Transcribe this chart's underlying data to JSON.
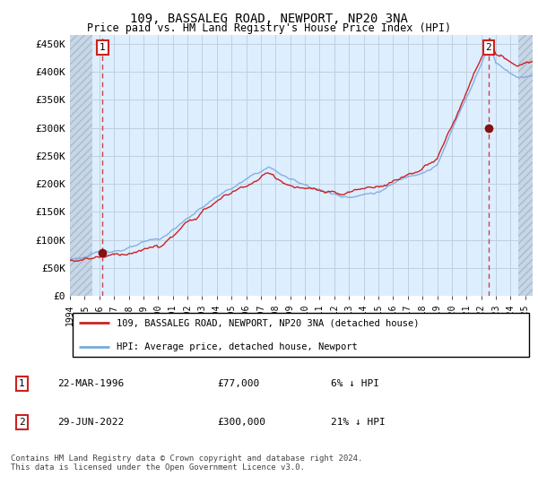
{
  "title": "109, BASSALEG ROAD, NEWPORT, NP20 3NA",
  "subtitle": "Price paid vs. HM Land Registry's House Price Index (HPI)",
  "ylabel_ticks": [
    "£0",
    "£50K",
    "£100K",
    "£150K",
    "£200K",
    "£250K",
    "£300K",
    "£350K",
    "£400K",
    "£450K"
  ],
  "ytick_values": [
    0,
    50000,
    100000,
    150000,
    200000,
    250000,
    300000,
    350000,
    400000,
    450000
  ],
  "xlim_start": 1994.0,
  "xlim_end": 2025.5,
  "ylim_min": 0,
  "ylim_max": 465000,
  "hatch_end_year": 1995.5,
  "hatch_start_year": 2024.5,
  "transaction1_date": 1996.22,
  "transaction1_price": 77000,
  "transaction1_label": "1",
  "transaction2_date": 2022.49,
  "transaction2_price": 300000,
  "transaction2_label": "2",
  "legend_line1": "109, BASSALEG ROAD, NEWPORT, NP20 3NA (detached house)",
  "legend_line2": "HPI: Average price, detached house, Newport",
  "note1_label": "1",
  "note1_date": "22-MAR-1996",
  "note1_price": "£77,000",
  "note1_hpi": "6% ↓ HPI",
  "note2_label": "2",
  "note2_date": "29-JUN-2022",
  "note2_price": "£300,000",
  "note2_hpi": "21% ↓ HPI",
  "footer": "Contains HM Land Registry data © Crown copyright and database right 2024.\nThis data is licensed under the Open Government Licence v3.0.",
  "hpi_line_color": "#7aaadd",
  "price_line_color": "#cc2222",
  "transaction_marker_color": "#881111",
  "dashed_vline_color": "#cc4444",
  "grid_color": "#c0d0e0",
  "bg_color": "#ddeeff",
  "hatch_fill_color": "#c5d5e5",
  "box_border_color": "#cc2222",
  "font_family": "monospace"
}
